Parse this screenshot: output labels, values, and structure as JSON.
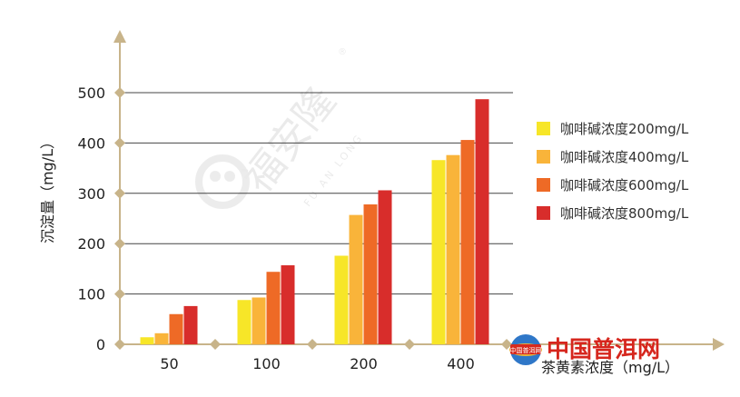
{
  "chart_data": {
    "type": "bar",
    "categories": [
      "50",
      "100",
      "200",
      "400"
    ],
    "series": [
      {
        "name": "咖啡碱浓度200mg/L",
        "color": "#f7e628",
        "values": [
          14,
          88,
          176,
          366
        ]
      },
      {
        "name": "咖啡碱浓度400mg/L",
        "color": "#f9b43a",
        "values": [
          22,
          93,
          257,
          376
        ]
      },
      {
        "name": "咖啡碱浓度600mg/L",
        "color": "#ee6a26",
        "values": [
          60,
          144,
          278,
          406
        ]
      },
      {
        "name": "咖啡碱浓度800mg/L",
        "color": "#d82d2b",
        "values": [
          76,
          157,
          306,
          487
        ]
      }
    ],
    "ylabel": "沉淀量（mg/L）",
    "xlabel": "茶黄素浓度（mg/L）",
    "ylim": [
      0,
      500
    ],
    "yticks": [
      0,
      100,
      200,
      300,
      400,
      500
    ],
    "grid": true,
    "legend": "right"
  },
  "watermark": {
    "text": "福安隆",
    "subtext": "FU AN LONG",
    "mark": "®"
  },
  "logo": {
    "text": "中国普洱网",
    "badge": "中国普洱网"
  },
  "colors": {
    "axis": "#c8b48a",
    "grid": "#444444"
  }
}
